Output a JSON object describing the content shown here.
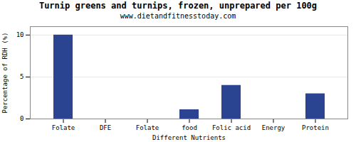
{
  "chart_data": {
    "type": "bar",
    "title": "Turnip greens and turnips, frozen, unprepared per 100g",
    "subtitle": "www.dietandfitnesstoday.com",
    "xlabel": "Different Nutrients",
    "ylabel": "Percentage of RDH (%)",
    "categories": [
      "Folate",
      "DFE",
      "Folate",
      "food",
      "Folic acid",
      "Energy",
      "Protein"
    ],
    "values": [
      10.0,
      0.0,
      0.0,
      1.1,
      4.0,
      0.0,
      3.0
    ],
    "color": "#2b4492",
    "ylim": [
      0,
      11
    ],
    "yticks": [
      0,
      5,
      10
    ],
    "grid": true
  }
}
